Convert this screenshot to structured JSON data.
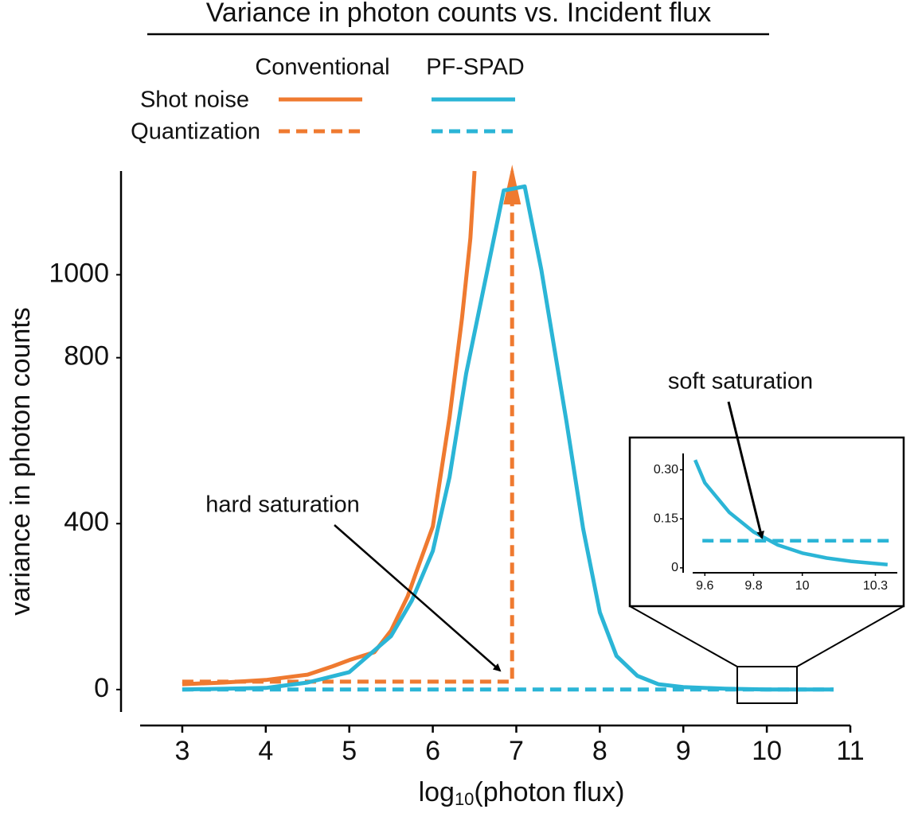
{
  "chart_data": {
    "type": "line",
    "title": "Variance in photon counts vs. Incident flux",
    "x_label": {
      "base": "log",
      "subscript": "10",
      "rest": "(photon flux)"
    },
    "y_label": "variance in photon counts",
    "xlim": [
      2.5,
      11
    ],
    "xticks": [
      3,
      4,
      5,
      6,
      7,
      8,
      9,
      10,
      11
    ],
    "ylim": [
      -54,
      1250
    ],
    "yticks": [
      0,
      400,
      800,
      1000
    ],
    "line_styles": [
      {
        "name": "Shot noise",
        "dash": false
      },
      {
        "name": "Quantization",
        "dash": true
      }
    ],
    "groups": [
      {
        "name": "Conventional",
        "color": "#ef7a30",
        "series": [
          {
            "x": [
              3,
              3.5,
              4,
              4.5,
              4.8,
              5.0,
              5.3,
              5.5,
              5.7,
              5.8,
              6.0,
              6.2,
              6.35,
              6.45,
              6.5
            ],
            "values": [
              13,
              17,
              23,
              36,
              56,
              71,
              90,
              142,
              225,
              282,
              393,
              656,
              896,
              1088,
              1250
            ]
          },
          {
            "x": [
              3,
              6.95,
              6.95
            ],
            "values": [
              19,
              19,
              1250
            ],
            "arrow": true
          }
        ]
      },
      {
        "name": "PF-SPAD",
        "color": "#2bb5d6",
        "series": [
          {
            "x": [
              3,
              4,
              4.5,
              5,
              5.5,
              5.75,
              6.0,
              6.2,
              6.4,
              6.65,
              6.85,
              7.1,
              7.3,
              7.6,
              7.8,
              8.0,
              8.2,
              8.45,
              8.7,
              9.0,
              9.5,
              10,
              10.8
            ],
            "values": [
              0,
              4,
              17,
              42,
              129,
              215,
              334,
              512,
              762,
              1008,
              1203,
              1213,
              1012,
              647,
              388,
              186,
              81,
              33,
              13,
              6,
              2,
              0,
              0
            ]
          },
          {
            "x": [
              3,
              10.8
            ],
            "values": [
              0.083,
              0.083
            ]
          }
        ]
      }
    ],
    "annotations": [
      {
        "text": "hard saturation"
      },
      {
        "text": "soft saturation"
      }
    ],
    "inset": {
      "color": "#2bb5d6",
      "xlim": [
        9.55,
        10.39
      ],
      "xticks": [
        9.6,
        9.8,
        10,
        10.3
      ],
      "ylim": [
        -0.015,
        0.35
      ],
      "yticks": [
        {
          "value": 0.3,
          "label": "0.30"
        },
        0.15,
        0
      ],
      "series": [
        {
          "x": [
            9.56,
            9.6,
            9.7,
            9.8,
            9.9,
            10,
            10.1,
            10.2,
            10.35
          ],
          "values": [
            0.33,
            0.26,
            0.17,
            0.11,
            0.07,
            0.045,
            0.03,
            0.02,
            0.01
          ]
        },
        {
          "x": [
            9.59,
            10.36
          ],
          "values": [
            0.083,
            0.083
          ]
        }
      ]
    }
  }
}
